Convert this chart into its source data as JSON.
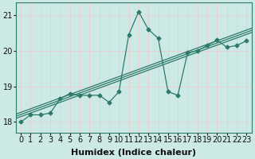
{
  "title": "",
  "xlabel": "Humidex (Indice chaleur)",
  "ylabel": "",
  "x_values": [
    0,
    1,
    2,
    3,
    4,
    5,
    6,
    7,
    8,
    9,
    10,
    11,
    12,
    13,
    14,
    15,
    16,
    17,
    18,
    19,
    20,
    21,
    22,
    23
  ],
  "y_values": [
    18.0,
    18.2,
    18.2,
    18.25,
    18.65,
    18.8,
    18.75,
    18.75,
    18.75,
    18.55,
    18.85,
    20.45,
    21.1,
    20.6,
    20.35,
    18.85,
    18.75,
    19.95,
    20.0,
    20.15,
    20.3,
    20.1,
    20.15,
    20.28
  ],
  "line_color": "#2d7a6a",
  "marker": "D",
  "marker_size": 2.5,
  "bg_color": "#cce9e5",
  "grid_color": "#f0f0f0",
  "ylim": [
    17.7,
    21.35
  ],
  "xlim": [
    -0.5,
    23.5
  ],
  "yticks": [
    18,
    19,
    20,
    21
  ],
  "xticks": [
    0,
    1,
    2,
    3,
    4,
    5,
    6,
    7,
    8,
    9,
    10,
    11,
    12,
    13,
    14,
    15,
    16,
    17,
    18,
    19,
    20,
    21,
    22,
    23
  ],
  "xlabel_fontsize": 8,
  "tick_fontsize": 7,
  "reg_line_color": "#2d7a6a",
  "fig_bg": "#cce9e5",
  "reg_offsets": [
    -0.06,
    0.0,
    0.06
  ]
}
